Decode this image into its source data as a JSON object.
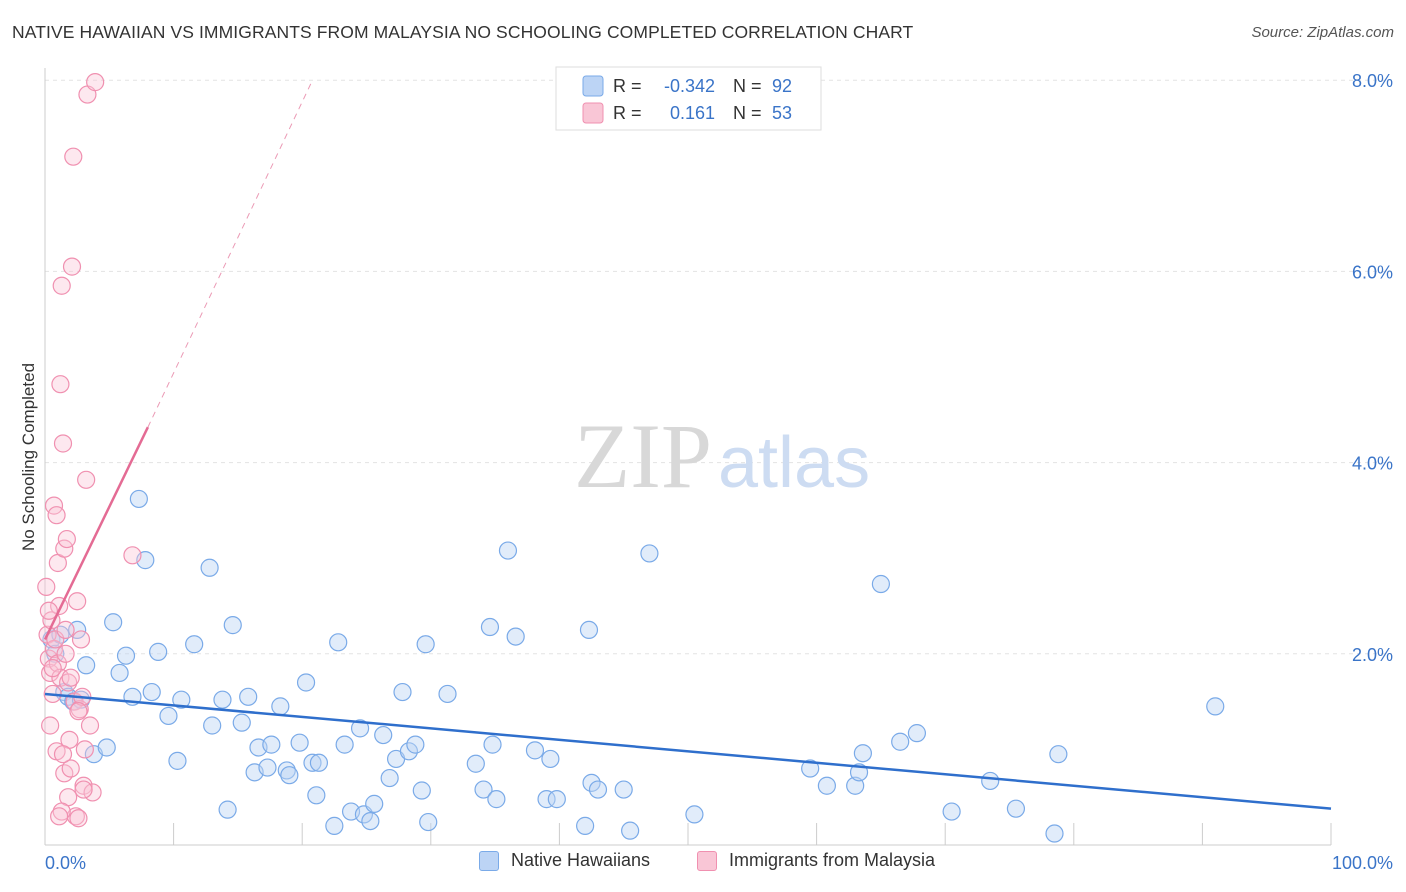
{
  "title": "NATIVE HAWAIIAN VS IMMIGRANTS FROM MALAYSIA NO SCHOOLING COMPLETED CORRELATION CHART",
  "source": "Source: ZipAtlas.com",
  "watermark": {
    "zip": "ZIP",
    "atlas": "atlas"
  },
  "legend_top": [
    {
      "r_label": "R =",
      "r_value": "-0.342",
      "n_label": "N =",
      "n_value": "92",
      "color": "#7aaae8",
      "fill": "#bcd4f5"
    },
    {
      "r_label": "R =",
      "r_value": "0.161",
      "n_label": "N =",
      "n_value": "53",
      "color": "#f090b0",
      "fill": "#f9c6d6"
    }
  ],
  "legend_bottom": [
    {
      "label": "Native Hawaiians",
      "color": "#7aaae8",
      "fill": "#bcd4f5"
    },
    {
      "label": "Immigrants from Malaysia",
      "color": "#f090b0",
      "fill": "#f9c6d6"
    }
  ],
  "chart_data": {
    "type": "scatter",
    "title": "NATIVE HAWAIIAN VS IMMIGRANTS FROM MALAYSIA NO SCHOOLING COMPLETED CORRELATION CHART",
    "xlabel": "",
    "ylabel": "No Schooling Completed",
    "xlim": [
      0,
      100
    ],
    "ylim": [
      0,
      8.2
    ],
    "x_tick_labels": [
      "0.0%",
      "100.0%"
    ],
    "y_ticks": [
      2.0,
      4.0,
      6.0,
      8.0
    ],
    "y_tick_labels": [
      "2.0%",
      "4.0%",
      "6.0%",
      "8.0%"
    ],
    "grid": true,
    "legend_position": "top-center",
    "series": [
      {
        "name": "Native Hawaiians",
        "color": "#7aaae8",
        "trend": {
          "x": [
            0,
            100
          ],
          "y": [
            1.58,
            0.38
          ]
        },
        "points": [
          [
            0.5,
            2.15
          ],
          [
            0.8,
            2.0
          ],
          [
            1.2,
            2.2
          ],
          [
            1.5,
            1.6
          ],
          [
            1.8,
            1.55
          ],
          [
            2.2,
            1.5
          ],
          [
            2.5,
            2.25
          ],
          [
            2.8,
            1.52
          ],
          [
            3.2,
            1.88
          ],
          [
            3.8,
            0.95
          ],
          [
            4.8,
            1.02
          ],
          [
            5.3,
            2.33
          ],
          [
            5.8,
            1.8
          ],
          [
            6.3,
            1.98
          ],
          [
            6.8,
            1.55
          ],
          [
            7.3,
            3.62
          ],
          [
            7.8,
            2.98
          ],
          [
            8.3,
            1.6
          ],
          [
            8.8,
            2.02
          ],
          [
            9.6,
            1.35
          ],
          [
            10.3,
            0.88
          ],
          [
            10.6,
            1.52
          ],
          [
            11.6,
            2.1
          ],
          [
            12.8,
            2.9
          ],
          [
            13,
            1.25
          ],
          [
            13.8,
            1.52
          ],
          [
            14.2,
            0.37
          ],
          [
            14.6,
            2.3
          ],
          [
            15.3,
            1.28
          ],
          [
            15.8,
            1.55
          ],
          [
            16.3,
            0.76
          ],
          [
            16.6,
            1.02
          ],
          [
            17.3,
            0.81
          ],
          [
            17.6,
            1.05
          ],
          [
            18.3,
            1.45
          ],
          [
            18.8,
            0.78
          ],
          [
            19,
            0.73
          ],
          [
            19.8,
            1.07
          ],
          [
            20.3,
            1.7
          ],
          [
            20.8,
            0.86
          ],
          [
            21.1,
            0.52
          ],
          [
            21.3,
            0.86
          ],
          [
            22.5,
            0.2
          ],
          [
            22.8,
            2.12
          ],
          [
            23.3,
            1.05
          ],
          [
            23.8,
            0.35
          ],
          [
            24.5,
            1.22
          ],
          [
            24.8,
            0.32
          ],
          [
            25.3,
            0.25
          ],
          [
            25.6,
            0.43
          ],
          [
            26.3,
            1.15
          ],
          [
            26.8,
            0.7
          ],
          [
            27.3,
            0.9
          ],
          [
            27.8,
            1.6
          ],
          [
            28.3,
            0.98
          ],
          [
            28.8,
            1.05
          ],
          [
            29.3,
            0.57
          ],
          [
            29.6,
            2.1
          ],
          [
            29.8,
            0.24
          ],
          [
            31.3,
            1.58
          ],
          [
            33.5,
            0.85
          ],
          [
            34.1,
            0.58
          ],
          [
            34.6,
            2.28
          ],
          [
            34.8,
            1.05
          ],
          [
            35.1,
            0.48
          ],
          [
            36,
            3.08
          ],
          [
            36.6,
            2.18
          ],
          [
            38.1,
            0.99
          ],
          [
            39,
            0.48
          ],
          [
            39.3,
            0.9
          ],
          [
            39.8,
            0.48
          ],
          [
            42,
            0.2
          ],
          [
            42.3,
            2.25
          ],
          [
            42.5,
            0.65
          ],
          [
            43,
            0.58
          ],
          [
            45,
            0.58
          ],
          [
            45.5,
            0.15
          ],
          [
            47,
            3.05
          ],
          [
            50.5,
            0.32
          ],
          [
            59.5,
            0.8
          ],
          [
            60.8,
            0.62
          ],
          [
            63,
            0.62
          ],
          [
            63.3,
            0.76
          ],
          [
            63.6,
            0.96
          ],
          [
            65,
            2.73
          ],
          [
            66.5,
            1.08
          ],
          [
            67.8,
            1.17
          ],
          [
            70.5,
            0.35
          ],
          [
            73.5,
            0.67
          ],
          [
            75.5,
            0.38
          ],
          [
            78.5,
            0.12
          ],
          [
            78.8,
            0.95
          ],
          [
            91,
            1.45
          ]
        ]
      },
      {
        "name": "Immigrants from Malaysia",
        "color": "#f090b0",
        "trend_solid": {
          "x": [
            0,
            8
          ],
          "y": [
            2.15,
            4.37
          ]
        },
        "trend_dashed": {
          "x": [
            8,
            20.8
          ],
          "y": [
            4.37,
            8.0
          ]
        },
        "points": [
          [
            0.1,
            2.7
          ],
          [
            0.2,
            2.2
          ],
          [
            0.3,
            1.95
          ],
          [
            0.4,
            1.8
          ],
          [
            0.5,
            2.35
          ],
          [
            0.6,
            1.58
          ],
          [
            0.7,
            2.05
          ],
          [
            0.7,
            3.55
          ],
          [
            0.8,
            2.15
          ],
          [
            0.9,
            3.45
          ],
          [
            1.0,
            2.95
          ],
          [
            1.0,
            1.9
          ],
          [
            1.1,
            2.5
          ],
          [
            1.2,
            1.75
          ],
          [
            1.2,
            4.82
          ],
          [
            1.3,
            5.85
          ],
          [
            1.4,
            4.2
          ],
          [
            1.5,
            3.1
          ],
          [
            1.5,
            0.75
          ],
          [
            1.6,
            2.25
          ],
          [
            1.7,
            3.2
          ],
          [
            1.8,
            1.7
          ],
          [
            1.8,
            0.5
          ],
          [
            1.9,
            1.1
          ],
          [
            2.0,
            1.75
          ],
          [
            2.1,
            6.05
          ],
          [
            2.2,
            7.2
          ],
          [
            2.3,
            1.5
          ],
          [
            2.4,
            0.3
          ],
          [
            2.5,
            2.55
          ],
          [
            2.6,
            0.28
          ],
          [
            2.7,
            1.42
          ],
          [
            2.8,
            2.15
          ],
          [
            2.9,
            1.55
          ],
          [
            3.0,
            0.62
          ],
          [
            3.1,
            1.0
          ],
          [
            3.2,
            3.82
          ],
          [
            3.3,
            7.85
          ],
          [
            3.5,
            1.25
          ],
          [
            3.7,
            0.55
          ],
          [
            3.9,
            7.98
          ],
          [
            6.8,
            3.03
          ],
          [
            0.4,
            1.25
          ],
          [
            0.9,
            0.98
          ],
          [
            1.3,
            0.35
          ],
          [
            1.6,
            2.0
          ],
          [
            2.0,
            0.8
          ],
          [
            2.6,
            1.4
          ],
          [
            0.3,
            2.45
          ],
          [
            0.6,
            1.85
          ],
          [
            1.1,
            0.3
          ],
          [
            1.4,
            0.95
          ],
          [
            3.0,
            0.58
          ]
        ]
      }
    ]
  }
}
